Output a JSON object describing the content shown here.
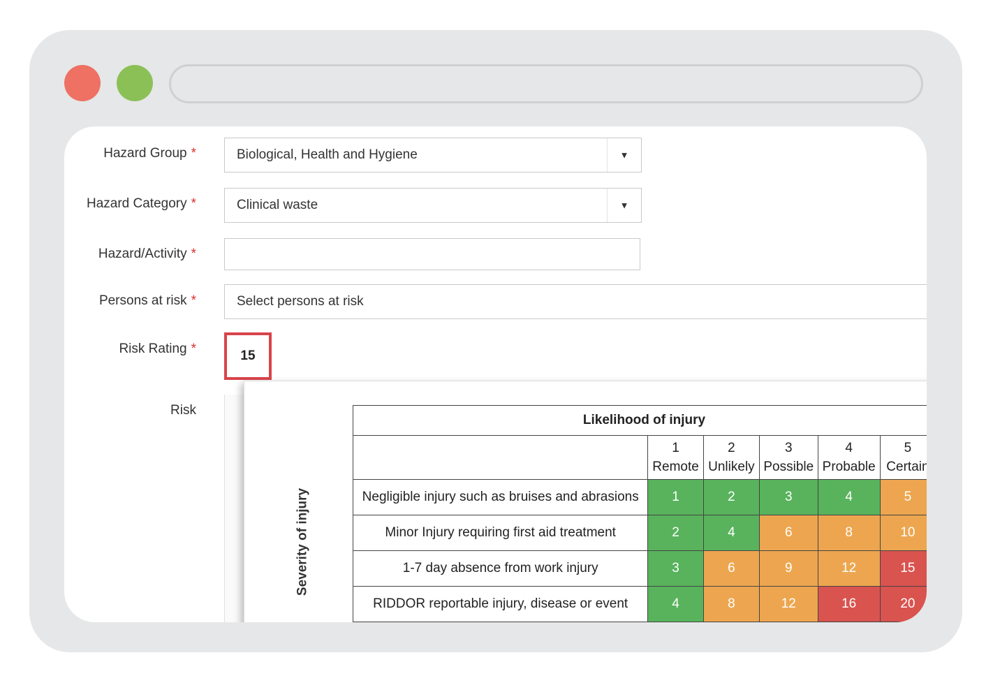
{
  "form": {
    "hazard_group": {
      "label": "Hazard Group",
      "required": "*",
      "value": "Biological, Health and Hygiene"
    },
    "hazard_category": {
      "label": "Hazard Category",
      "required": "*",
      "value": "Clinical waste"
    },
    "hazard_activity": {
      "label": "Hazard/Activity",
      "required": "*",
      "value": ""
    },
    "persons_at_risk": {
      "label": "Persons at risk",
      "required": "*",
      "placeholder": "Select persons at risk"
    },
    "risk_rating": {
      "label": "Risk Rating",
      "required": "*",
      "value": "15"
    },
    "risk": {
      "label": "Risk"
    }
  },
  "matrix": {
    "title": "Likelihood of injury",
    "severity_label": "Severity of injury",
    "columns": [
      {
        "num": "1",
        "name": "Remote"
      },
      {
        "num": "2",
        "name": "Unlikely"
      },
      {
        "num": "3",
        "name": "Possible"
      },
      {
        "num": "4",
        "name": "Probable"
      },
      {
        "num": "5",
        "name": "Certain"
      }
    ],
    "rows": [
      {
        "desc": "Negligible injury such as bruises and abrasions",
        "cells": [
          "1",
          "2",
          "3",
          "4",
          "5"
        ]
      },
      {
        "desc": "Minor Injury requiring first aid treatment",
        "cells": [
          "2",
          "4",
          "6",
          "8",
          "10"
        ]
      },
      {
        "desc": "1-7 day absence from work injury",
        "cells": [
          "3",
          "6",
          "9",
          "12",
          "15"
        ]
      },
      {
        "desc": "RIDDOR reportable injury, disease or event",
        "cells": [
          "4",
          "8",
          "12",
          "16",
          "20"
        ]
      }
    ],
    "colors": {
      "low": "#58b35c",
      "medium": "#eda64f",
      "high": "#d9534f"
    }
  },
  "icons": {
    "dropdown": "caret-down-icon"
  }
}
